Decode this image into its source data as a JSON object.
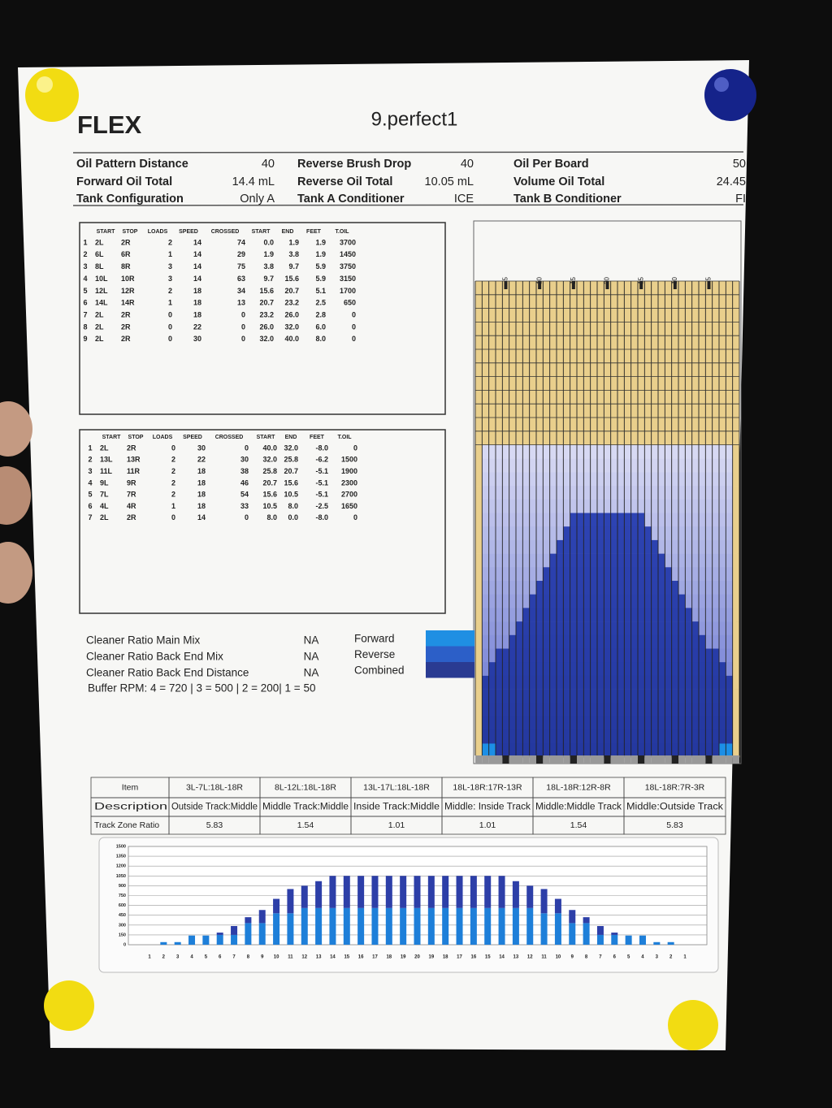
{
  "header": {
    "logo": "FLEX",
    "title": "9.perfect1"
  },
  "summary": {
    "rows": [
      [
        {
          "label": "Oil Pattern Distance",
          "value": "40"
        },
        {
          "label": "Reverse Brush Drop",
          "value": "40"
        },
        {
          "label": "Oil Per Board",
          "value": "50"
        }
      ],
      [
        {
          "label": "Forward Oil Total",
          "value": "14.4 mL"
        },
        {
          "label": "Reverse Oil Total",
          "value": "10.05 mL"
        },
        {
          "label": "Volume Oil Total",
          "value": "24.45"
        }
      ],
      [
        {
          "label": "Tank Configuration",
          "value": "Only A"
        },
        {
          "label": "Tank A Conditioner",
          "value": "ICE"
        },
        {
          "label": "Tank B Conditioner",
          "value": "FI"
        }
      ]
    ]
  },
  "forward_table": {
    "columns": [
      "START",
      "STOP",
      "LOADS",
      "SPEED",
      "CROSSED",
      "START",
      "END",
      "FEET",
      "T.OIL"
    ],
    "rows": [
      [
        "1",
        "2L",
        "2R",
        "2",
        "14",
        "74",
        "0.0",
        "1.9",
        "1.9",
        "3700"
      ],
      [
        "2",
        "6L",
        "6R",
        "1",
        "14",
        "29",
        "1.9",
        "3.8",
        "1.9",
        "1450"
      ],
      [
        "3",
        "8L",
        "8R",
        "3",
        "14",
        "75",
        "3.8",
        "9.7",
        "5.9",
        "3750"
      ],
      [
        "4",
        "10L",
        "10R",
        "3",
        "14",
        "63",
        "9.7",
        "15.6",
        "5.9",
        "3150"
      ],
      [
        "5",
        "12L",
        "12R",
        "2",
        "18",
        "34",
        "15.6",
        "20.7",
        "5.1",
        "1700"
      ],
      [
        "6",
        "14L",
        "14R",
        "1",
        "18",
        "13",
        "20.7",
        "23.2",
        "2.5",
        "650"
      ],
      [
        "7",
        "2L",
        "2R",
        "0",
        "18",
        "0",
        "23.2",
        "26.0",
        "2.8",
        "0"
      ],
      [
        "8",
        "2L",
        "2R",
        "0",
        "22",
        "0",
        "26.0",
        "32.0",
        "6.0",
        "0"
      ],
      [
        "9",
        "2L",
        "2R",
        "0",
        "30",
        "0",
        "32.0",
        "40.0",
        "8.0",
        "0"
      ]
    ]
  },
  "reverse_table": {
    "columns": [
      "START",
      "STOP",
      "LOADS",
      "SPEED",
      "CROSSED",
      "START",
      "END",
      "FEET",
      "T.OIL"
    ],
    "rows": [
      [
        "1",
        "2L",
        "2R",
        "0",
        "30",
        "0",
        "40.0",
        "32.0",
        "-8.0",
        "0"
      ],
      [
        "2",
        "13L",
        "13R",
        "2",
        "22",
        "30",
        "32.0",
        "25.8",
        "-6.2",
        "1500"
      ],
      [
        "3",
        "11L",
        "11R",
        "2",
        "18",
        "38",
        "25.8",
        "20.7",
        "-5.1",
        "1900"
      ],
      [
        "4",
        "9L",
        "9R",
        "2",
        "18",
        "46",
        "20.7",
        "15.6",
        "-5.1",
        "2300"
      ],
      [
        "5",
        "7L",
        "7R",
        "2",
        "18",
        "54",
        "15.6",
        "10.5",
        "-5.1",
        "2700"
      ],
      [
        "6",
        "4L",
        "4R",
        "1",
        "18",
        "33",
        "10.5",
        "8.0",
        "-2.5",
        "1650"
      ],
      [
        "7",
        "2L",
        "2R",
        "0",
        "14",
        "0",
        "8.0",
        "0.0",
        "-8.0",
        "0"
      ]
    ]
  },
  "cleaner": {
    "rows": [
      {
        "label": "Cleaner Ratio Main Mix",
        "value": "NA"
      },
      {
        "label": "Cleaner Ratio Back End Mix",
        "value": "NA"
      },
      {
        "label": "Cleaner Ratio Back End Distance",
        "value": "NA"
      }
    ],
    "buffer": "Buffer RPM: 4 = 720 | 3 = 500 | 2 = 200| 1 = 50"
  },
  "legend": [
    {
      "name": "Forward",
      "color": "#1f8fe3"
    },
    {
      "name": "Reverse",
      "color": "#2c5fc8"
    },
    {
      "name": "Combined",
      "color": "#2a3b92"
    }
  ],
  "lane": {
    "board_labels": [
      "5",
      "10",
      "15",
      "20",
      "15",
      "10",
      "5"
    ]
  },
  "track_zone": {
    "rows": [
      [
        "Item",
        "3L-7L:18L-18R",
        "8L-12L:18L-18R",
        "13L-17L:18L-18R",
        "18L-18R:17R-13R",
        "18L-18R:12R-8R",
        "18L-18R:7R-3R"
      ],
      [
        "Description",
        "Outside Track:Middle",
        "Middle Track:Middle",
        "Inside Track:Middle",
        "Middle: Inside Track",
        "Middle:Middle Track",
        "Middle:Outside Track"
      ],
      [
        "Track Zone Ratio",
        "5.83",
        "1.54",
        "1.01",
        "1.01",
        "1.54",
        "5.83"
      ]
    ]
  },
  "chart_data": {
    "type": "bar",
    "stacked": true,
    "categories": [
      "1",
      "2",
      "3",
      "4",
      "5",
      "6",
      "7",
      "8",
      "9",
      "10",
      "11",
      "12",
      "13",
      "14",
      "15",
      "16",
      "17",
      "18",
      "19",
      "20",
      "19",
      "18",
      "17",
      "16",
      "15",
      "14",
      "13",
      "12",
      "11",
      "10",
      "9",
      "8",
      "7",
      "6",
      "5",
      "4",
      "3",
      "2",
      "1"
    ],
    "series": [
      {
        "color": "#1e7fd9",
        "values": [
          0,
          40,
          40,
          140,
          140,
          150,
          150,
          330,
          330,
          480,
          480,
          560,
          560,
          560,
          560,
          560,
          560,
          560,
          560,
          560,
          560,
          560,
          560,
          560,
          560,
          560,
          560,
          560,
          480,
          480,
          330,
          330,
          150,
          150,
          140,
          140,
          40,
          40,
          0
        ]
      },
      {
        "color": "#2d3fa8",
        "values": [
          0,
          0,
          0,
          0,
          0,
          35,
          135,
          90,
          200,
          220,
          370,
          340,
          410,
          490,
          490,
          490,
          490,
          490,
          490,
          490,
          490,
          490,
          490,
          490,
          490,
          490,
          410,
          340,
          370,
          220,
          200,
          90,
          135,
          35,
          0,
          0,
          0,
          0,
          0
        ]
      }
    ],
    "ylim": [
      0,
      1500
    ],
    "yticks": [
      0,
      150,
      300,
      450,
      600,
      750,
      900,
      1050,
      1200,
      1350,
      1500
    ],
    "grid": true
  }
}
